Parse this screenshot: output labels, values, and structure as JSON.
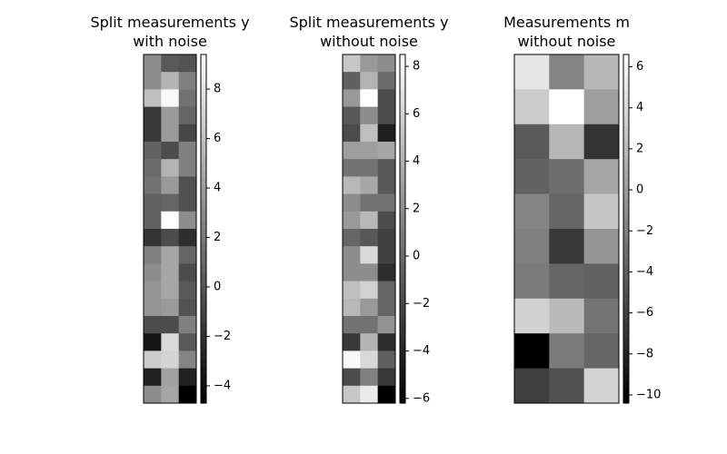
{
  "chart_data": [
    {
      "type": "heatmap",
      "title": "Split measurements y\nwith noise",
      "cmap": "gray",
      "vlim": [
        -4.7,
        9.4
      ],
      "cbar_ticks": [
        {
          "value": -4,
          "label": "−4"
        },
        {
          "value": -2,
          "label": "−2"
        },
        0,
        2,
        4,
        6,
        8
      ],
      "values": [
        [
          3.1,
          0.2,
          -0.1
        ],
        [
          3.1,
          5.2,
          2.4
        ],
        [
          5.9,
          9.0,
          1.6
        ],
        [
          -1.6,
          3.8,
          0.9
        ],
        [
          -1.6,
          3.8,
          -0.8
        ],
        [
          0.7,
          -0.5,
          2.4
        ],
        [
          1.2,
          5.2,
          2.4
        ],
        [
          1.6,
          3.8,
          -0.2
        ],
        [
          0.7,
          0.9,
          -0.2
        ],
        [
          0.7,
          9.4,
          3.1
        ],
        [
          -1.9,
          -0.5,
          -2.2
        ],
        [
          2.4,
          4.5,
          0.9
        ],
        [
          3.1,
          4.5,
          -0.5
        ],
        [
          3.5,
          4.5,
          0.2
        ],
        [
          3.5,
          3.8,
          -0.1
        ],
        [
          -0.5,
          -0.5,
          2.4
        ],
        [
          -3.6,
          7.3,
          0.2
        ],
        [
          6.6,
          7.0,
          2.6
        ],
        [
          -2.9,
          4.2,
          -2.9
        ],
        [
          3.1,
          4.5,
          -4.7
        ]
      ]
    },
    {
      "type": "heatmap",
      "title": "Split measurements y\nwithout noise",
      "cmap": "gray",
      "vlim": [
        -6.2,
        8.5
      ],
      "cbar_ticks": [
        {
          "value": -6,
          "label": "−6"
        },
        {
          "value": -4,
          "label": "−4"
        },
        {
          "value": -2,
          "label": "−2"
        },
        0,
        2,
        4,
        6,
        8
      ],
      "values": [
        [
          5.3,
          2.6,
          1.9
        ],
        [
          -0.6,
          4.1,
          0.0
        ],
        [
          2.6,
          8.5,
          -1.8
        ],
        [
          -1.1,
          1.9,
          -1.8
        ],
        [
          -1.8,
          4.8,
          -4.4
        ],
        [
          2.9,
          2.9,
          3.4
        ],
        [
          0.4,
          0.4,
          -1.1
        ],
        [
          4.4,
          3.4,
          -1.1
        ],
        [
          1.9,
          0.4,
          0.4
        ],
        [
          2.6,
          4.4,
          -1.8
        ],
        [
          -0.3,
          -1.1,
          -2.5
        ],
        [
          1.9,
          6.3,
          -2.5
        ],
        [
          1.9,
          1.9,
          -3.6
        ],
        [
          4.8,
          5.9,
          -0.3
        ],
        [
          4.4,
          2.6,
          -0.3
        ],
        [
          0.4,
          0.4,
          2.3
        ],
        [
          -3.0,
          4.1,
          -3.6
        ],
        [
          8.1,
          6.3,
          -0.6
        ],
        [
          -1.8,
          1.2,
          -3.0
        ],
        [
          5.3,
          7.3,
          -6.2
        ]
      ]
    },
    {
      "type": "heatmap",
      "title": "Measurements m\nwithout noise",
      "cmap": "gray",
      "vlim": [
        -10.4,
        6.6
      ],
      "cbar_ticks": [
        {
          "value": -10,
          "label": "−10"
        },
        {
          "value": -8,
          "label": "−8"
        },
        {
          "value": -6,
          "label": "−6"
        },
        {
          "value": -4,
          "label": "−4"
        },
        {
          "value": -2,
          "label": "−2"
        },
        0,
        2,
        4,
        6
      ],
      "values": [
        [
          4.9,
          -1.6,
          1.8
        ],
        [
          3.2,
          6.6,
          0.1
        ],
        [
          -4.4,
          1.8,
          -7.0
        ],
        [
          -3.9,
          -3.1,
          0.6
        ],
        [
          -1.6,
          -3.6,
          2.7
        ],
        [
          -1.9,
          -6.7,
          -0.5
        ],
        [
          -2.2,
          -3.6,
          -3.9
        ],
        [
          3.5,
          2.0,
          -2.7
        ],
        [
          -10.4,
          -2.2,
          -3.6
        ],
        [
          -6.2,
          -5.0,
          3.7
        ]
      ]
    }
  ]
}
